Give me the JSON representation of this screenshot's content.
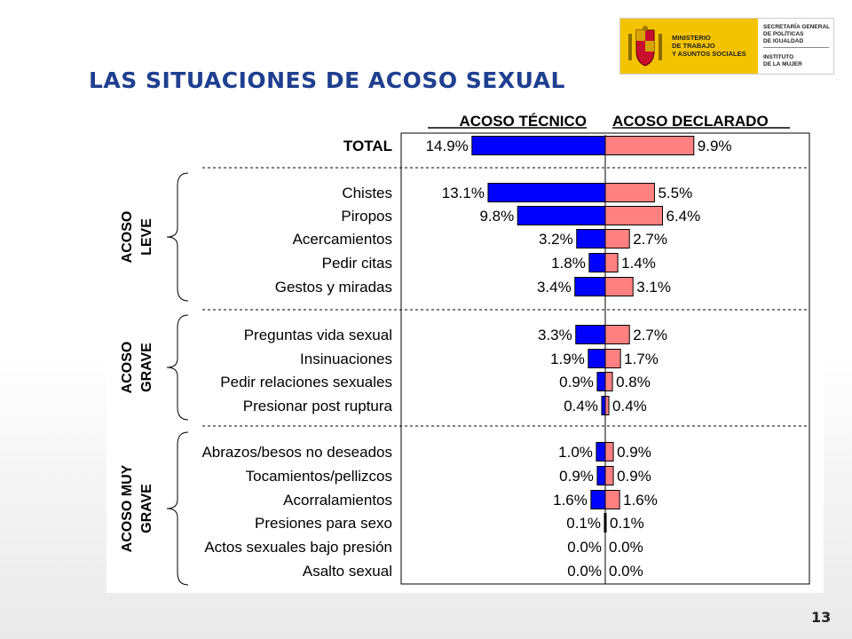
{
  "slide": {
    "title": "LAS SITUACIONES DE ACOSO SEXUAL",
    "page_number": "13"
  },
  "logo": {
    "ministry_lines": [
      "MINISTERIO",
      "DE TRABAJO",
      "Y ASUNTOS SOCIALES"
    ],
    "secretaria_lines": [
      "SECRETARÍA GENERAL",
      "DE POLÍTICAS",
      "DE IGUALDAD"
    ],
    "instituto_lines": [
      "INSTITUTO",
      "DE LA MUJER"
    ]
  },
  "colors": {
    "tecnico": "#0000ff",
    "declarado": "#ff8080"
  },
  "chart_data": {
    "type": "bar",
    "orientation": "horizontal-diverging",
    "series": [
      {
        "name": "ACOSO TÉCNICO",
        "values": [
          14.9,
          13.1,
          9.8,
          3.2,
          1.8,
          3.4,
          3.3,
          1.9,
          0.9,
          0.4,
          1.0,
          0.9,
          1.6,
          0.1,
          0.0,
          0.0
        ]
      },
      {
        "name": "ACOSO DECLARADO",
        "values": [
          9.9,
          5.5,
          6.4,
          2.7,
          1.4,
          3.1,
          2.7,
          1.7,
          0.8,
          0.4,
          0.9,
          0.9,
          1.6,
          0.1,
          0.0,
          0.0
        ]
      }
    ],
    "categories": [
      "TOTAL",
      "Chistes",
      "Piropos",
      "Acercamientos",
      "Pedir citas",
      "Gestos y miradas",
      "Preguntas vida sexual",
      "Insinuaciones",
      "Pedir relaciones sexuales",
      "Presionar post ruptura",
      "Abrazos/besos no deseados",
      "Tocamientos/pellizcos",
      "Acorralamientos",
      "Presiones para sexo",
      "Actos sexuales bajo presión",
      "Asalto sexual"
    ],
    "labels_tecnico": [
      "14.9%",
      "13.1%",
      "9.8%",
      "3.2%",
      "1.8%",
      "3.4%",
      "3.3%",
      "1.9%",
      "0.9%",
      "0.4%",
      "1.0%",
      "0.9%",
      "1.6%",
      "0.1%",
      "0.0%",
      "0.0%"
    ],
    "labels_declarado": [
      "9.9%",
      "5.5%",
      "6.4%",
      "2.7%",
      "1.4%",
      "3.1%",
      "2.7%",
      "1.7%",
      "0.8%",
      "0.4%",
      "0.9%",
      "0.9%",
      "1.6%",
      "0.1%",
      "0.0%",
      "0.0%"
    ],
    "groups": [
      {
        "label": [
          "ACOSO",
          "LEVE"
        ],
        "first": 1,
        "last": 5
      },
      {
        "label": [
          "ACOSO",
          "GRAVE"
        ],
        "first": 6,
        "last": 9
      },
      {
        "label": [
          "ACOSO MUY",
          "GRAVE"
        ],
        "first": 10,
        "last": 15
      }
    ],
    "bold_categories": [
      0
    ],
    "xlim": [
      -15,
      15
    ],
    "legend_placement": "top"
  }
}
